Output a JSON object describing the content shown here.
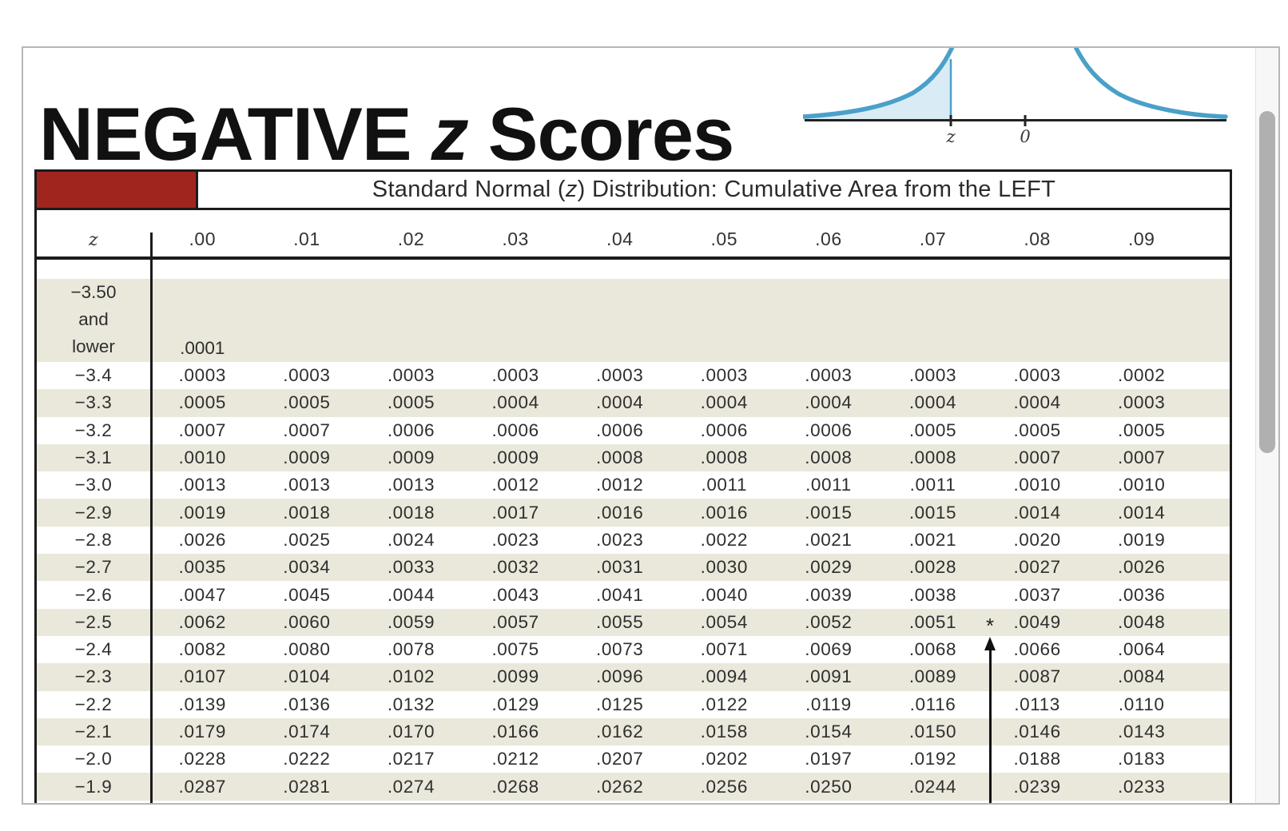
{
  "colors": {
    "header_red": "#a0251f",
    "row_stripe": "#eae8db",
    "curve_blue": "#4aa0c8",
    "curve_fill": "#d9ecf5",
    "scrollbar_thumb": "#b0b0b0",
    "table_border": "#1b1b1b"
  },
  "page": {
    "title": {
      "part1": "NEGATIVE ",
      "italic": "z",
      "part2": " Scores"
    },
    "curve": {
      "z_label": "z",
      "zero_label": "0"
    },
    "table": {
      "header": {
        "prefix": "Standard Normal (",
        "italic": "z",
        "suffix": ") Distribution: Cumulative Area from the LEFT"
      },
      "columns": [
        "z",
        ".00",
        ".01",
        ".02",
        ".03",
        ".04",
        ".05",
        ".06",
        ".07",
        ".08",
        ".09"
      ],
      "special_row": {
        "label_lines": [
          "−3.50",
          "and",
          "lower"
        ],
        "value": ".0001"
      },
      "rows": [
        {
          "z": "−3.4",
          "values": [
            ".0003",
            ".0003",
            ".0003",
            ".0003",
            ".0003",
            ".0003",
            ".0003",
            ".0003",
            ".0003",
            ".0002"
          ]
        },
        {
          "z": "−3.3",
          "values": [
            ".0005",
            ".0005",
            ".0005",
            ".0004",
            ".0004",
            ".0004",
            ".0004",
            ".0004",
            ".0004",
            ".0003"
          ]
        },
        {
          "z": "−3.2",
          "values": [
            ".0007",
            ".0007",
            ".0006",
            ".0006",
            ".0006",
            ".0006",
            ".0006",
            ".0005",
            ".0005",
            ".0005"
          ]
        },
        {
          "z": "−3.1",
          "values": [
            ".0010",
            ".0009",
            ".0009",
            ".0009",
            ".0008",
            ".0008",
            ".0008",
            ".0008",
            ".0007",
            ".0007"
          ]
        },
        {
          "z": "−3.0",
          "values": [
            ".0013",
            ".0013",
            ".0013",
            ".0012",
            ".0012",
            ".0011",
            ".0011",
            ".0011",
            ".0010",
            ".0010"
          ]
        },
        {
          "z": "−2.9",
          "values": [
            ".0019",
            ".0018",
            ".0018",
            ".0017",
            ".0016",
            ".0016",
            ".0015",
            ".0015",
            ".0014",
            ".0014"
          ]
        },
        {
          "z": "−2.8",
          "values": [
            ".0026",
            ".0025",
            ".0024",
            ".0023",
            ".0023",
            ".0022",
            ".0021",
            ".0021",
            ".0020",
            ".0019"
          ]
        },
        {
          "z": "−2.7",
          "values": [
            ".0035",
            ".0034",
            ".0033",
            ".0032",
            ".0031",
            ".0030",
            ".0029",
            ".0028",
            ".0027",
            ".0026"
          ]
        },
        {
          "z": "−2.6",
          "values": [
            ".0047",
            ".0045",
            ".0044",
            ".0043",
            ".0041",
            ".0040",
            ".0039",
            ".0038",
            ".0037",
            ".0036"
          ]
        },
        {
          "z": "−2.5",
          "values": [
            ".0062",
            ".0060",
            ".0059",
            ".0057",
            ".0055",
            ".0054",
            ".0052",
            ".0051",
            ".0049",
            ".0048"
          ]
        },
        {
          "z": "−2.4",
          "values": [
            ".0082",
            ".0080",
            ".0078",
            ".0075",
            ".0073",
            ".0071",
            ".0069",
            ".0068",
            ".0066",
            ".0064"
          ]
        },
        {
          "z": "−2.3",
          "values": [
            ".0107",
            ".0104",
            ".0102",
            ".0099",
            ".0096",
            ".0094",
            ".0091",
            ".0089",
            ".0087",
            ".0084"
          ]
        },
        {
          "z": "−2.2",
          "values": [
            ".0139",
            ".0136",
            ".0132",
            ".0129",
            ".0125",
            ".0122",
            ".0119",
            ".0116",
            ".0113",
            ".0110"
          ]
        },
        {
          "z": "−2.1",
          "values": [
            ".0179",
            ".0174",
            ".0170",
            ".0166",
            ".0162",
            ".0158",
            ".0154",
            ".0150",
            ".0146",
            ".0143"
          ]
        },
        {
          "z": "−2.0",
          "values": [
            ".0228",
            ".0222",
            ".0217",
            ".0212",
            ".0207",
            ".0202",
            ".0197",
            ".0192",
            ".0188",
            ".0183"
          ]
        },
        {
          "z": "−1.9",
          "values": [
            ".0287",
            ".0281",
            ".0274",
            ".0268",
            ".0262",
            ".0256",
            ".0250",
            ".0244",
            ".0239",
            ".0233"
          ]
        }
      ],
      "annotation": {
        "asterisk": "*"
      }
    }
  }
}
